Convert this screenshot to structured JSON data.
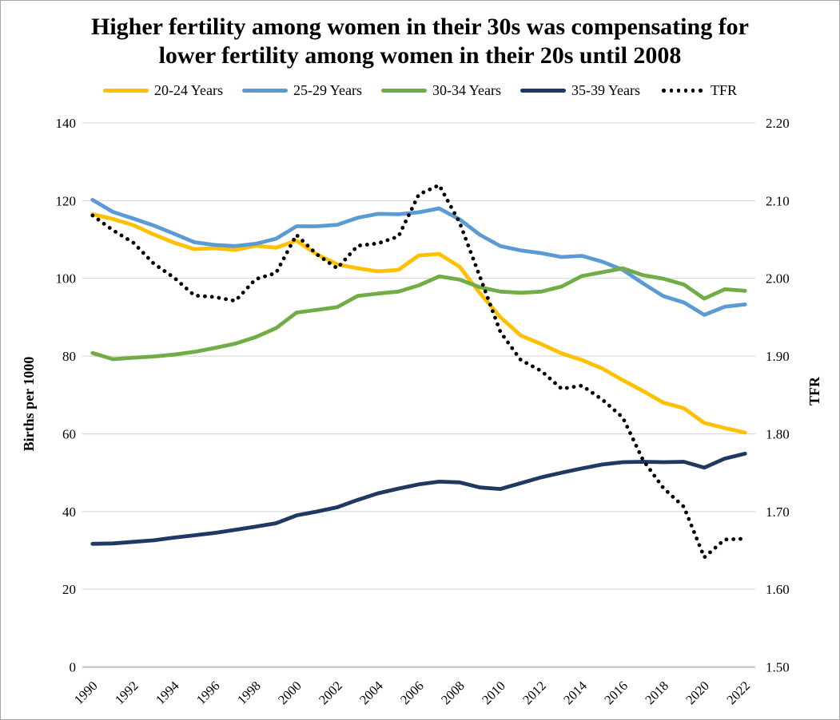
{
  "title": "Higher fertility among women in their 30s was compensating for lower fertility among women in their 20s until 2008",
  "colors": {
    "age_20_24": "#FFC000",
    "age_25_29": "#5B9BD5",
    "age_30_34": "#70AD47",
    "age_35_39": "#1F3864",
    "tfr": "#000000",
    "gridline": "#D9D9D9",
    "axis_line": "#BFBFBF",
    "frame_border": "#A6A6A6"
  },
  "chart_data": {
    "type": "line",
    "title": "Higher fertility among women in their 30s was compensating for lower fertility among women in their 20s until 2008",
    "grid": true,
    "legend_position": "top",
    "x": [
      1990,
      1991,
      1992,
      1993,
      1994,
      1995,
      1996,
      1997,
      1998,
      1999,
      2000,
      2001,
      2002,
      2003,
      2004,
      2005,
      2006,
      2007,
      2008,
      2009,
      2010,
      2011,
      2012,
      2013,
      2014,
      2015,
      2016,
      2017,
      2018,
      2019,
      2020,
      2021,
      2022
    ],
    "x_tick_label_years": [
      1990,
      1992,
      1994,
      1996,
      1998,
      2000,
      2002,
      2004,
      2006,
      2008,
      2010,
      2012,
      2014,
      2016,
      2018,
      2020,
      2022
    ],
    "left_axis": {
      "label": "Births per 1000",
      "range": [
        0,
        140
      ],
      "ticks": [
        0,
        20,
        40,
        60,
        80,
        100,
        120,
        140
      ],
      "tick_labels": [
        "0",
        "20",
        "40",
        "60",
        "80",
        "100",
        "120",
        "140"
      ]
    },
    "right_axis": {
      "label": "TFR",
      "range": [
        1.5,
        2.2
      ],
      "ticks": [
        1.5,
        1.6,
        1.7,
        1.8,
        1.9,
        2.0,
        2.1,
        2.2
      ],
      "tick_labels": [
        "1.50",
        "1.60",
        "1.70",
        "1.80",
        "1.90",
        "2.00",
        "2.10",
        "2.20"
      ]
    },
    "series": [
      {
        "name": "20-24 Years",
        "axis": "left",
        "style": "solid",
        "color": "#FFC000",
        "values": [
          116.5,
          115.3,
          113.7,
          111.3,
          109.2,
          107.5,
          107.8,
          107.3,
          108.4,
          107.9,
          109.7,
          106.2,
          103.6,
          102.6,
          101.8,
          102.2,
          105.9,
          106.3,
          103.0,
          96.2,
          90.0,
          85.3,
          83.1,
          80.7,
          79.0,
          76.8,
          73.8,
          71.0,
          68.0,
          66.6,
          62.8,
          61.5,
          60.3
        ]
      },
      {
        "name": "25-29 Years",
        "axis": "left",
        "style": "solid",
        "color": "#5B9BD5",
        "values": [
          120.2,
          117.1,
          115.4,
          113.6,
          111.5,
          109.3,
          108.6,
          108.3,
          108.9,
          110.2,
          113.4,
          113.4,
          113.8,
          115.6,
          116.6,
          116.5,
          117.0,
          118.0,
          115.2,
          111.2,
          108.3,
          107.2,
          106.5,
          105.5,
          105.8,
          104.3,
          102.2,
          98.7,
          95.4,
          93.8,
          90.6,
          92.7,
          93.3
        ]
      },
      {
        "name": "30-34 Years",
        "axis": "left",
        "style": "solid",
        "color": "#70AD47",
        "values": [
          80.8,
          79.2,
          79.6,
          79.9,
          80.4,
          81.1,
          82.1,
          83.2,
          84.9,
          87.2,
          91.2,
          91.9,
          92.6,
          95.5,
          96.1,
          96.6,
          98.2,
          100.5,
          99.7,
          97.7,
          96.6,
          96.3,
          96.6,
          97.9,
          100.6,
          101.6,
          102.6,
          100.8,
          99.9,
          98.4,
          94.8,
          97.2,
          96.8
        ]
      },
      {
        "name": "35-39 Years",
        "axis": "left",
        "style": "solid",
        "color": "#1F3864",
        "values": [
          31.7,
          31.8,
          32.2,
          32.6,
          33.3,
          33.9,
          34.5,
          35.3,
          36.1,
          37.0,
          39.0,
          40.0,
          41.1,
          43.0,
          44.7,
          45.9,
          47.0,
          47.7,
          47.5,
          46.2,
          45.8,
          47.3,
          48.8,
          50.0,
          51.1,
          52.1,
          52.7,
          52.8,
          52.7,
          52.8,
          51.3,
          53.6,
          54.9
        ]
      },
      {
        "name": "TFR",
        "axis": "right",
        "style": "dotted",
        "color": "#000000",
        "values": [
          2.081,
          2.062,
          2.046,
          2.019,
          2.001,
          1.978,
          1.976,
          1.971,
          1.999,
          2.007,
          2.056,
          2.031,
          2.013,
          2.042,
          2.045,
          2.054,
          2.108,
          2.12,
          2.072,
          2.002,
          1.931,
          1.895,
          1.881,
          1.858,
          1.862,
          1.844,
          1.821,
          1.766,
          1.73,
          1.706,
          1.641,
          1.664,
          1.665
        ]
      }
    ]
  }
}
